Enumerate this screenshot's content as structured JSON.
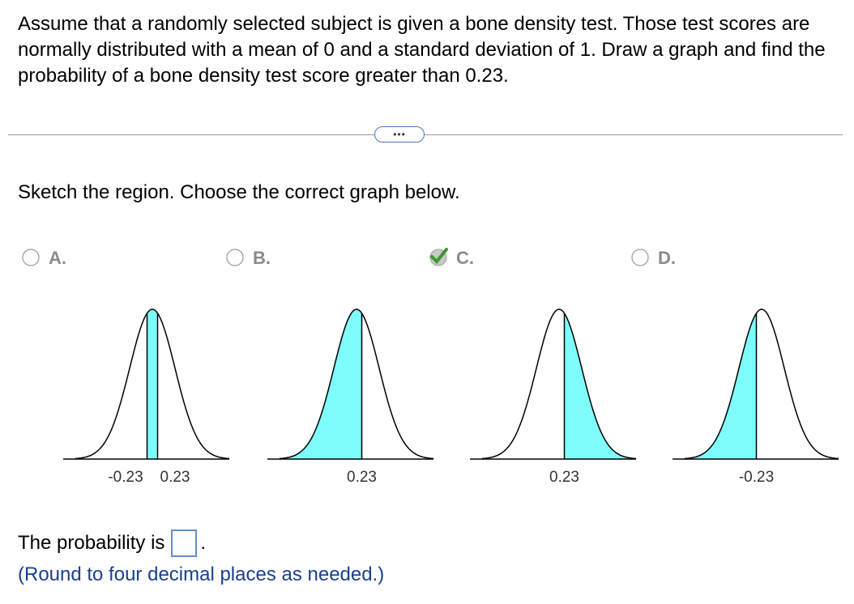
{
  "question": {
    "text": "Assume that a randomly selected subject is given a bone density test. Those test scores are normally distributed with a mean of 0 and a standard deviation of 1. Draw a graph and find the probability of a bone density test score greater than 0.23.",
    "more_button": "•••",
    "prompt": "Sketch the region. Choose the correct graph below.",
    "options": [
      {
        "letter": "A.",
        "labels": [
          "-0.23",
          "0.23"
        ]
      },
      {
        "letter": "B.",
        "labels": [
          "0.23"
        ]
      },
      {
        "letter": "C.",
        "labels": [
          "0.23"
        ]
      },
      {
        "letter": "D.",
        "labels": [
          "-0.23"
        ]
      }
    ],
    "answer": {
      "prefix": "The probability is",
      "suffix": ".",
      "hint": "(Round to four decimal places as needed.)"
    }
  }
}
